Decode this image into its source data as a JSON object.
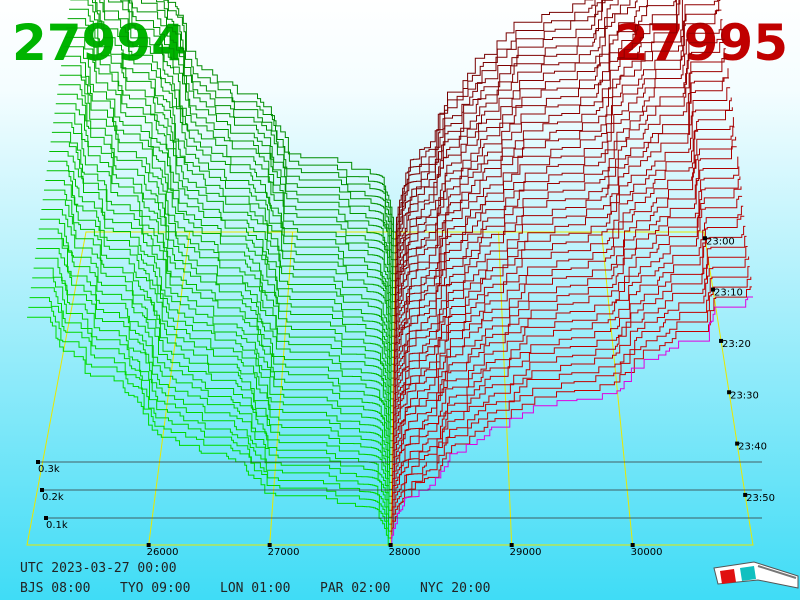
{
  "header": {
    "bid": 27994,
    "ask": 27995
  },
  "price_axis": {
    "ticks": [
      26000,
      27000,
      28000,
      29000,
      30000
    ]
  },
  "depth_axis": {
    "ticks": [
      "0.3k",
      "0.2k",
      "0.1k"
    ]
  },
  "time_axis": {
    "ticks": [
      "23:00",
      "23:10",
      "23:20",
      "23:30",
      "23:40",
      "23:50"
    ]
  },
  "footer": {
    "utc": "UTC 2023-03-27 00:00",
    "cities": [
      "BJS 08:00",
      "TYO 09:00",
      "LON 01:00",
      "PAR 02:00",
      "NYC 20:00"
    ]
  }
}
